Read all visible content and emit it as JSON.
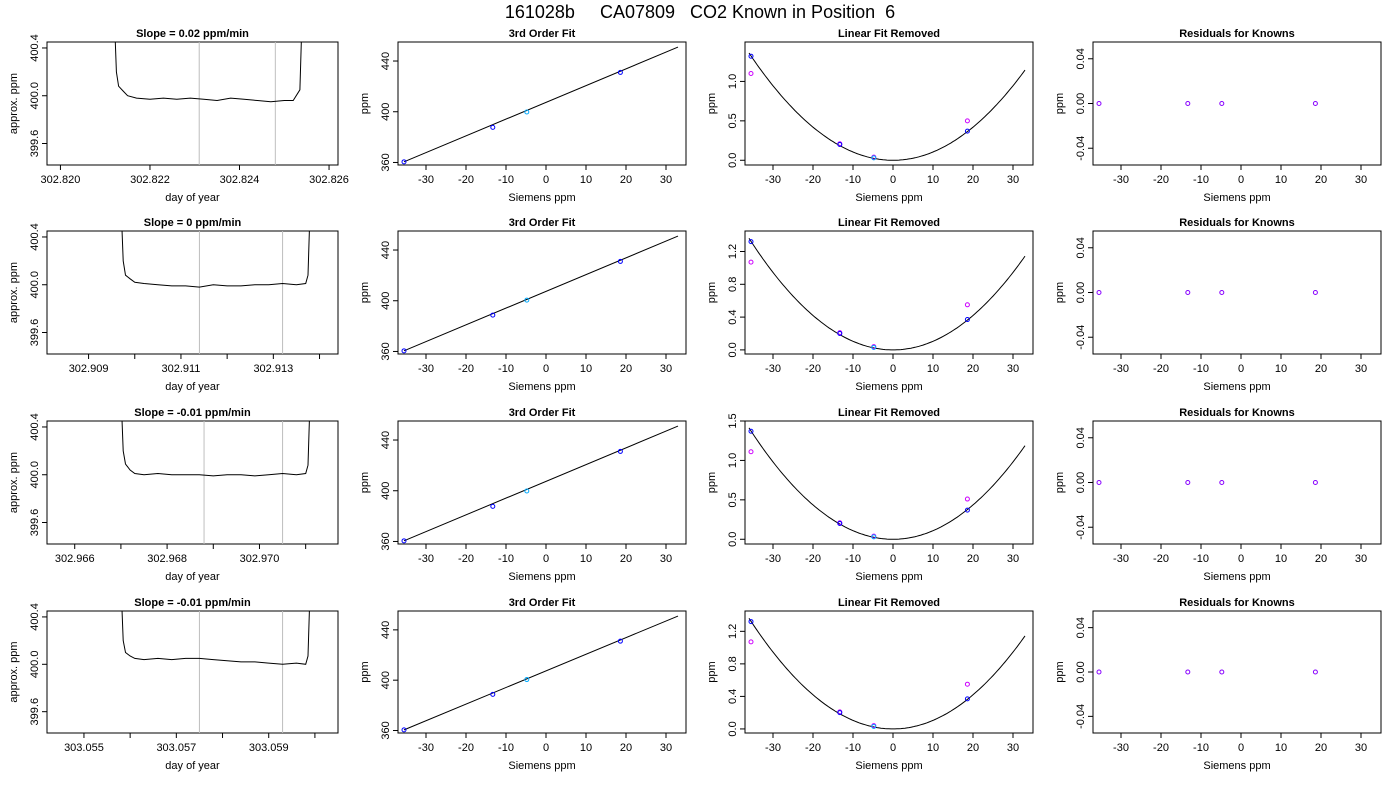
{
  "page": {
    "title": "161028b     CA07809   CO2 Known in Position  6"
  },
  "chart_data": [
    {
      "type": "line",
      "title": "Slope =  0.02  ppm/min",
      "xlabel": "day of year",
      "ylabel": "approx. ppm",
      "xlim": [
        302.8197,
        302.8262
      ],
      "ylim": [
        399.42,
        400.45
      ],
      "xticks": [
        "302.820",
        "302.822",
        "302.824",
        "302.826"
      ],
      "xtick_values": [
        302.82,
        302.822,
        302.824,
        302.826
      ],
      "yticks": [
        "399.6",
        "400.0",
        "400.4"
      ],
      "ytick_values": [
        399.6,
        400.0,
        400.4
      ],
      "vlines": [
        302.8231,
        302.8248
      ],
      "series": [
        {
          "x": [
            302.8212,
            302.82125,
            302.8213,
            302.8214,
            302.8215,
            302.8217,
            302.822,
            302.8223,
            302.8226,
            302.8229,
            302.8232,
            302.8235,
            302.8238,
            302.8241,
            302.8244,
            302.8247,
            302.825,
            302.8252,
            302.82535,
            302.8254
          ],
          "y": [
            400.7,
            400.2,
            400.08,
            400.04,
            400.0,
            399.98,
            399.97,
            399.98,
            399.97,
            399.98,
            399.97,
            399.96,
            399.98,
            399.97,
            399.96,
            399.95,
            399.96,
            399.96,
            400.05,
            400.7
          ]
        }
      ]
    },
    {
      "type": "line",
      "title": "3rd Order Fit",
      "xlabel": "Siemens ppm",
      "ylabel": "ppm",
      "xlim": [
        -37,
        35
      ],
      "ylim": [
        358,
        455
      ],
      "xticks": [
        "-30",
        "-20",
        "-10",
        "0",
        "10",
        "20",
        "30"
      ],
      "xtick_values": [
        -30,
        -20,
        -10,
        0,
        10,
        20,
        30
      ],
      "yticks": [
        "360",
        "400",
        "440"
      ],
      "ytick_values": [
        360,
        400,
        440
      ],
      "series": [
        {
          "name": "",
          "x": [
            -35.5,
            33
          ],
          "y": [
            360.5,
            451
          ]
        },
        {
          "name": "",
          "x": [
            -35.5,
            -13.3,
            -4.8,
            18.6
          ],
          "y": [
            360.5,
            387.7,
            399.8,
            431
          ]
        }
      ]
    },
    {
      "type": "scatter",
      "title": "Linear Fit Removed",
      "xlabel": "Siemens ppm",
      "ylabel": "ppm",
      "xlim": [
        -37,
        35
      ],
      "ylim": [
        -0.06,
        1.5
      ],
      "xticks": [
        "-30",
        "-20",
        "-10",
        "0",
        "10",
        "20",
        "30"
      ],
      "xtick_values": [
        -30,
        -20,
        -10,
        0,
        10,
        20,
        30
      ],
      "yticks": [
        "0.0",
        "0.5",
        "1.0"
      ],
      "ytick_values": [
        0.0,
        0.5,
        1.0
      ],
      "curve": {
        "a": 0.00105,
        "x0": 0,
        "y0": 0
      },
      "series": [
        {
          "name": "",
          "x": [
            -35.5,
            -13.3,
            -4.8,
            18.6
          ],
          "y": [
            1.32,
            0.2,
            0.03,
            0.37
          ]
        },
        {
          "name": "",
          "x": [
            -35.5,
            -13.3,
            -4.8,
            18.6
          ],
          "y": [
            1.1,
            0.21,
            0.04,
            0.5
          ]
        }
      ]
    },
    {
      "type": "scatter",
      "title": "Residuals for Knowns",
      "xlabel": "Siemens ppm",
      "ylabel": "ppm",
      "xlim": [
        -37,
        35
      ],
      "ylim": [
        -0.055,
        0.055
      ],
      "xticks": [
        "-30",
        "-20",
        "-10",
        "0",
        "10",
        "20",
        "30"
      ],
      "xtick_values": [
        -30,
        -20,
        -10,
        0,
        10,
        20,
        30
      ],
      "yticks": [
        "-0.04",
        "0.00",
        "0.04"
      ],
      "ytick_values": [
        -0.04,
        0.0,
        0.04
      ],
      "series": [
        {
          "x": [
            -35.5,
            -13.3,
            -4.8,
            18.6
          ],
          "y": [
            0,
            0,
            0,
            0
          ]
        }
      ]
    },
    {
      "type": "line",
      "title": "Slope =  0  ppm/min",
      "xlabel": "day of year",
      "ylabel": "approx. ppm",
      "xlim": [
        302.9081,
        302.9144
      ],
      "ylim": [
        399.42,
        400.45
      ],
      "xticks": [
        "302.909",
        "302.911",
        "302.913"
      ],
      "xtick_values": [
        302.909,
        302.911,
        302.913
      ],
      "minor_xticks": [
        302.91,
        302.912,
        302.914
      ],
      "yticks": [
        "399.6",
        "400.0",
        "400.4"
      ],
      "ytick_values": [
        399.6,
        400.0,
        400.4
      ],
      "vlines": [
        302.9114,
        302.9132
      ],
      "series": [
        {
          "x": [
            302.9097,
            302.90975,
            302.9098,
            302.9099,
            302.91,
            302.9102,
            302.9105,
            302.9108,
            302.9111,
            302.9114,
            302.9117,
            302.912,
            302.9123,
            302.9126,
            302.9129,
            302.9132,
            302.9135,
            302.9137,
            302.91375,
            302.9138
          ],
          "y": [
            400.7,
            400.2,
            400.08,
            400.05,
            400.02,
            400.01,
            400.0,
            399.99,
            399.99,
            399.98,
            400.0,
            399.99,
            399.99,
            400.0,
            400.0,
            400.01,
            400.0,
            400.01,
            400.08,
            400.7
          ]
        }
      ]
    },
    {
      "type": "line",
      "title": "3rd Order Fit",
      "xlabel": "Siemens ppm",
      "ylabel": "ppm",
      "xlim": [
        -37,
        35
      ],
      "ylim": [
        358,
        455
      ],
      "xticks": [
        "-30",
        "-20",
        "-10",
        "0",
        "10",
        "20",
        "30"
      ],
      "xtick_values": [
        -30,
        -20,
        -10,
        0,
        10,
        20,
        30
      ],
      "yticks": [
        "360",
        "400",
        "440"
      ],
      "ytick_values": [
        360,
        400,
        440
      ],
      "series": [
        {
          "name": "",
          "x": [
            -35.5,
            33
          ],
          "y": [
            360.5,
            451
          ]
        },
        {
          "name": "",
          "x": [
            -35.5,
            -13.3,
            -4.8,
            18.6
          ],
          "y": [
            360.5,
            388.7,
            400.5,
            431
          ]
        }
      ]
    },
    {
      "type": "scatter",
      "title": "Linear Fit Removed",
      "xlabel": "Siemens ppm",
      "ylabel": "ppm",
      "xlim": [
        -37,
        35
      ],
      "ylim": [
        -0.05,
        1.45
      ],
      "xticks": [
        "-30",
        "-20",
        "-10",
        "0",
        "10",
        "20",
        "30"
      ],
      "xtick_values": [
        -30,
        -20,
        -10,
        0,
        10,
        20,
        30
      ],
      "yticks": [
        "0.0",
        "0.4",
        "0.8",
        "1.2"
      ],
      "ytick_values": [
        0.0,
        0.4,
        0.8,
        1.2
      ],
      "curve": {
        "a": 0.00105,
        "x0": 0,
        "y0": 0
      },
      "series": [
        {
          "name": "",
          "x": [
            -35.5,
            -13.3,
            -4.8,
            18.6
          ],
          "y": [
            1.32,
            0.2,
            0.03,
            0.37
          ]
        },
        {
          "name": "",
          "x": [
            -35.5,
            -13.3,
            -4.8,
            18.6
          ],
          "y": [
            1.07,
            0.21,
            0.04,
            0.55
          ]
        }
      ]
    },
    {
      "type": "scatter",
      "title": "Residuals for Knowns",
      "xlabel": "Siemens ppm",
      "ylabel": "ppm",
      "xlim": [
        -37,
        35
      ],
      "ylim": [
        -0.055,
        0.055
      ],
      "xticks": [
        "-30",
        "-20",
        "-10",
        "0",
        "10",
        "20",
        "30"
      ],
      "xtick_values": [
        -30,
        -20,
        -10,
        0,
        10,
        20,
        30
      ],
      "yticks": [
        "-0.04",
        "0.00",
        "0.04"
      ],
      "ytick_values": [
        -0.04,
        0.0,
        0.04
      ],
      "series": [
        {
          "x": [
            -35.5,
            -13.3,
            -4.8,
            18.6
          ],
          "y": [
            0,
            0,
            0,
            0
          ]
        }
      ]
    },
    {
      "type": "line",
      "title": "Slope =  -0.01  ppm/min",
      "xlabel": "day of year",
      "ylabel": "approx. ppm",
      "xlim": [
        302.9654,
        302.9717
      ],
      "ylim": [
        399.42,
        400.45
      ],
      "xticks": [
        "302.966",
        "302.968",
        "302.970"
      ],
      "xtick_values": [
        302.966,
        302.968,
        302.97
      ],
      "minor_xticks": [
        302.967,
        302.969,
        302.971
      ],
      "yticks": [
        "399.6",
        "400.0",
        "400.4"
      ],
      "ytick_values": [
        399.6,
        400.0,
        400.4
      ],
      "vlines": [
        302.9688,
        302.9705
      ],
      "series": [
        {
          "x": [
            302.967,
            302.96705,
            302.9671,
            302.9672,
            302.9673,
            302.9675,
            302.9678,
            302.9681,
            302.9684,
            302.9687,
            302.969,
            302.9693,
            302.9696,
            302.9699,
            302.9702,
            302.9705,
            302.9708,
            302.971,
            302.97105,
            302.9711
          ],
          "y": [
            400.7,
            400.2,
            400.09,
            400.04,
            400.01,
            400.0,
            400.01,
            400.0,
            400.0,
            400.0,
            399.99,
            400.0,
            400.0,
            399.99,
            400.0,
            400.01,
            400.0,
            400.01,
            400.08,
            400.7
          ]
        }
      ]
    },
    {
      "type": "line",
      "title": "3rd Order Fit",
      "xlabel": "Siemens ppm",
      "ylabel": "ppm",
      "xlim": [
        -37,
        35
      ],
      "ylim": [
        358,
        455
      ],
      "xticks": [
        "-30",
        "-20",
        "-10",
        "0",
        "10",
        "20",
        "30"
      ],
      "xtick_values": [
        -30,
        -20,
        -10,
        0,
        10,
        20,
        30
      ],
      "yticks": [
        "360",
        "400",
        "440"
      ],
      "ytick_values": [
        360,
        400,
        440
      ],
      "series": [
        {
          "name": "",
          "x": [
            -35.5,
            33
          ],
          "y": [
            360.5,
            451
          ]
        },
        {
          "name": "",
          "x": [
            -35.5,
            -13.3,
            -4.8,
            18.6
          ],
          "y": [
            360.5,
            387.7,
            399.8,
            431
          ]
        }
      ]
    },
    {
      "type": "scatter",
      "title": "Linear Fit Removed",
      "xlabel": "Siemens ppm",
      "ylabel": "ppm",
      "xlim": [
        -37,
        35
      ],
      "ylim": [
        -0.06,
        1.5
      ],
      "xticks": [
        "-30",
        "-20",
        "-10",
        "0",
        "10",
        "20",
        "30"
      ],
      "xtick_values": [
        -30,
        -20,
        -10,
        0,
        10,
        20,
        30
      ],
      "yticks": [
        "0.0",
        "0.5",
        "1.0",
        "1.5"
      ],
      "ytick_values": [
        0.0,
        0.5,
        1.0,
        1.5
      ],
      "curve": {
        "a": 0.00109,
        "x0": 0,
        "y0": 0
      },
      "series": [
        {
          "name": "",
          "x": [
            -35.5,
            -13.3,
            -4.8,
            18.6
          ],
          "y": [
            1.37,
            0.2,
            0.03,
            0.37
          ]
        },
        {
          "name": "",
          "x": [
            -35.5,
            -13.3,
            -4.8,
            18.6
          ],
          "y": [
            1.11,
            0.21,
            0.04,
            0.51
          ]
        }
      ]
    },
    {
      "type": "scatter",
      "title": "Residuals for Knowns",
      "xlabel": "Siemens ppm",
      "ylabel": "ppm",
      "xlim": [
        -37,
        35
      ],
      "ylim": [
        -0.055,
        0.055
      ],
      "xticks": [
        "-30",
        "-20",
        "-10",
        "0",
        "10",
        "20",
        "30"
      ],
      "xtick_values": [
        -30,
        -20,
        -10,
        0,
        10,
        20,
        30
      ],
      "yticks": [
        "-0.04",
        "0.00",
        "0.04"
      ],
      "ytick_values": [
        -0.04,
        0.0,
        0.04
      ],
      "series": [
        {
          "x": [
            -35.5,
            -13.3,
            -4.8,
            18.6
          ],
          "y": [
            0,
            0,
            0,
            0
          ]
        }
      ]
    },
    {
      "type": "line",
      "title": "Slope =  -0.01  ppm/min",
      "xlabel": "day of year",
      "ylabel": "approx. ppm",
      "xlim": [
        303.0542,
        303.0605
      ],
      "ylim": [
        399.42,
        400.45
      ],
      "xticks": [
        "303.055",
        "303.057",
        "303.059"
      ],
      "xtick_values": [
        303.055,
        303.057,
        303.059
      ],
      "minor_xticks": [
        303.056,
        303.058,
        303.06
      ],
      "yticks": [
        "399.6",
        "400.0",
        "400.4"
      ],
      "ytick_values": [
        399.6,
        400.0,
        400.4
      ],
      "vlines": [
        303.0575,
        303.0593
      ],
      "series": [
        {
          "x": [
            303.0558,
            303.05585,
            303.0559,
            303.056,
            303.0561,
            303.0563,
            303.0566,
            303.0569,
            303.0572,
            303.0575,
            303.0578,
            303.0581,
            303.0584,
            303.0587,
            303.059,
            303.0593,
            303.0596,
            303.0598,
            303.05985,
            303.0599
          ],
          "y": [
            400.7,
            400.2,
            400.1,
            400.07,
            400.05,
            400.04,
            400.05,
            400.04,
            400.05,
            400.05,
            400.04,
            400.03,
            400.02,
            400.02,
            400.01,
            400.0,
            400.01,
            400.0,
            400.07,
            400.7
          ]
        }
      ]
    },
    {
      "type": "line",
      "title": "3rd Order Fit",
      "xlabel": "Siemens ppm",
      "ylabel": "ppm",
      "xlim": [
        -37,
        35
      ],
      "ylim": [
        358,
        455
      ],
      "xticks": [
        "-30",
        "-20",
        "-10",
        "0",
        "10",
        "20",
        "30"
      ],
      "xtick_values": [
        -30,
        -20,
        -10,
        0,
        10,
        20,
        30
      ],
      "yticks": [
        "360",
        "400",
        "440"
      ],
      "ytick_values": [
        360,
        400,
        440
      ],
      "series": [
        {
          "name": "",
          "x": [
            -35.5,
            33
          ],
          "y": [
            360.5,
            451
          ]
        },
        {
          "name": "",
          "x": [
            -35.5,
            -13.3,
            -4.8,
            18.6
          ],
          "y": [
            360.5,
            388.7,
            400.5,
            431
          ]
        }
      ]
    },
    {
      "type": "scatter",
      "title": "Linear Fit Removed",
      "xlabel": "Siemens ppm",
      "ylabel": "ppm",
      "xlim": [
        -37,
        35
      ],
      "ylim": [
        -0.05,
        1.45
      ],
      "xticks": [
        "-30",
        "-20",
        "-10",
        "0",
        "10",
        "20",
        "30"
      ],
      "xtick_values": [
        -30,
        -20,
        -10,
        0,
        10,
        20,
        30
      ],
      "yticks": [
        "0.0",
        "0.4",
        "0.8",
        "1.2"
      ],
      "ytick_values": [
        0.0,
        0.4,
        0.8,
        1.2
      ],
      "curve": {
        "a": 0.00105,
        "x0": 0,
        "y0": 0
      },
      "series": [
        {
          "name": "",
          "x": [
            -35.5,
            -13.3,
            -4.8,
            18.6
          ],
          "y": [
            1.32,
            0.2,
            0.03,
            0.37
          ]
        },
        {
          "name": "",
          "x": [
            -35.5,
            -13.3,
            -4.8,
            18.6
          ],
          "y": [
            1.07,
            0.21,
            0.04,
            0.55
          ]
        }
      ]
    },
    {
      "type": "scatter",
      "title": "Residuals for Knowns",
      "xlabel": "Siemens ppm",
      "ylabel": "ppm",
      "xlim": [
        -37,
        35
      ],
      "ylim": [
        -0.055,
        0.055
      ],
      "xticks": [
        "-30",
        "-20",
        "-10",
        "0",
        "10",
        "20",
        "30"
      ],
      "xtick_values": [
        -30,
        -20,
        -10,
        0,
        10,
        20,
        30
      ],
      "yticks": [
        "-0.04",
        "0.00",
        "0.04"
      ],
      "ytick_values": [
        -0.04,
        0.0,
        0.04
      ],
      "series": [
        {
          "x": [
            -35.5,
            -13.3,
            -4.8,
            18.6
          ],
          "y": [
            0,
            0,
            0,
            0
          ]
        }
      ]
    }
  ],
  "colors": {
    "axis": "#000000",
    "line": "#000000",
    "vline": "#bebebe",
    "point_primary": "#0000ff",
    "point_secondary": "#cc00ff",
    "point_cyan": "#00aaff",
    "residual_point": "#8800ff"
  }
}
